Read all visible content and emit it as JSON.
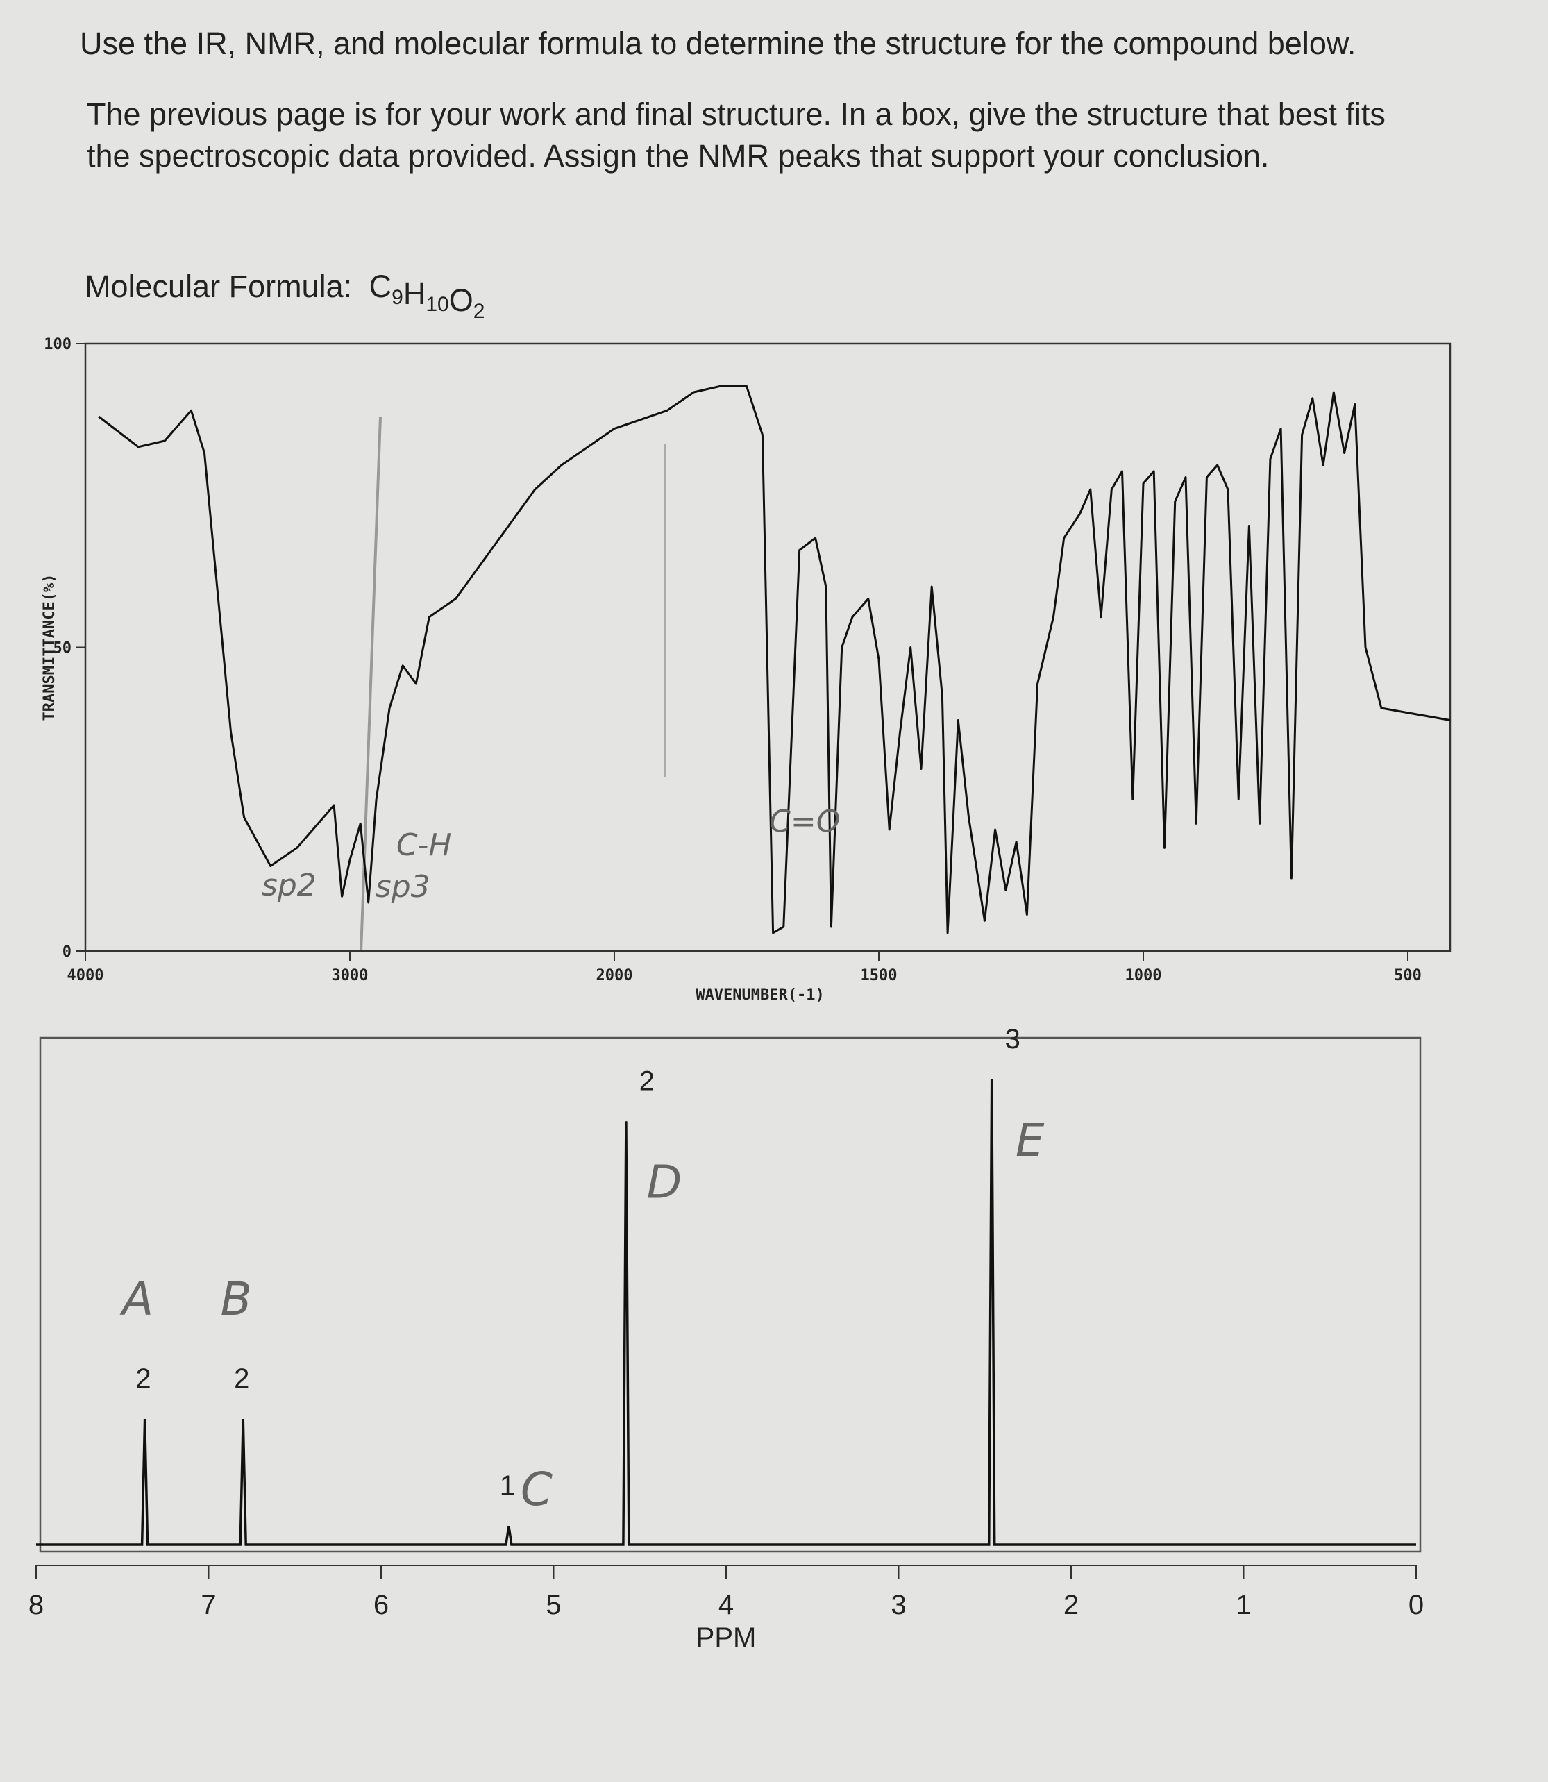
{
  "instructions": [
    "Use the IR, NMR, and molecular formula to determine the structure for the compound below.",
    "The previous page is for your work and final structure. In a box, give the structure that best fits",
    "the spectroscopic data provided. Assign the NMR peaks that support your conclusion."
  ],
  "molecular_formula": {
    "label": "Molecular Formula:",
    "elements": [
      {
        "symbol": "C",
        "count": 9
      },
      {
        "symbol": "H",
        "count": 10
      },
      {
        "symbol": "O",
        "count": 2
      }
    ]
  },
  "chart_data": [
    {
      "type": "line",
      "x_label": "WAVENUMBER(-1)",
      "y_label": "TRANSMITTANCE(%)",
      "xlim": [
        4000,
        420
      ],
      "xticks": [
        4000,
        3000,
        2000,
        1500,
        1000,
        500
      ],
      "ylim": [
        0,
        100
      ],
      "yticks": [
        0,
        50,
        100
      ],
      "color": "#111111",
      "x": [
        3950,
        3800,
        3700,
        3600,
        3550,
        3450,
        3400,
        3300,
        3200,
        3100,
        3060,
        3030,
        3000,
        2960,
        2930,
        2900,
        2850,
        2800,
        2750,
        2700,
        2600,
        2500,
        2400,
        2300,
        2200,
        2100,
        2000,
        1900,
        1850,
        1800,
        1750,
        1720,
        1700,
        1680,
        1650,
        1620,
        1600,
        1590,
        1570,
        1550,
        1520,
        1500,
        1480,
        1460,
        1440,
        1420,
        1400,
        1380,
        1370,
        1350,
        1330,
        1300,
        1280,
        1260,
        1240,
        1220,
        1200,
        1170,
        1150,
        1120,
        1100,
        1080,
        1060,
        1040,
        1020,
        1000,
        980,
        960,
        940,
        920,
        900,
        880,
        860,
        840,
        820,
        800,
        780,
        760,
        740,
        720,
        700,
        680,
        660,
        640,
        620,
        600,
        580,
        550,
        420
      ],
      "values": [
        88,
        83,
        84,
        89,
        82,
        36,
        22,
        14,
        17,
        22,
        24,
        9,
        15,
        21,
        8,
        25,
        40,
        47,
        44,
        55,
        58,
        64,
        70,
        76,
        80,
        83,
        86,
        89,
        92,
        93,
        93,
        85,
        3,
        4,
        66,
        68,
        60,
        4,
        50,
        55,
        58,
        48,
        20,
        36,
        50,
        30,
        60,
        42,
        3,
        38,
        22,
        5,
        20,
        10,
        18,
        6,
        44,
        55,
        68,
        72,
        76,
        55,
        76,
        79,
        25,
        77,
        79,
        17,
        74,
        78,
        21,
        78,
        80,
        76,
        25,
        70,
        21,
        81,
        86,
        12,
        85,
        91,
        80,
        92,
        82,
        90,
        50,
        40,
        38
      ],
      "annotations": [
        {
          "text": "sp2",
          "x": 3230
        },
        {
          "text": "C-H",
          "x": 2720
        },
        {
          "text": "sp3",
          "x": 2800
        },
        {
          "text": "C=O",
          "x": 1640
        }
      ]
    },
    {
      "type": "spectrum",
      "x_label": "PPM",
      "xlim": [
        8,
        0
      ],
      "xticks": [
        8,
        7,
        6,
        5,
        4,
        3,
        2,
        1,
        0
      ],
      "ylim": [
        0,
        100
      ],
      "color": "#111111",
      "x": [
        7.37,
        6.8,
        5.26,
        4.58,
        2.46
      ],
      "values": [
        27,
        27,
        4,
        91,
        100
      ],
      "integrations": [
        2,
        2,
        1,
        2,
        3
      ],
      "peak_labels": [
        "A",
        "B",
        "C",
        "D",
        "E"
      ]
    }
  ]
}
